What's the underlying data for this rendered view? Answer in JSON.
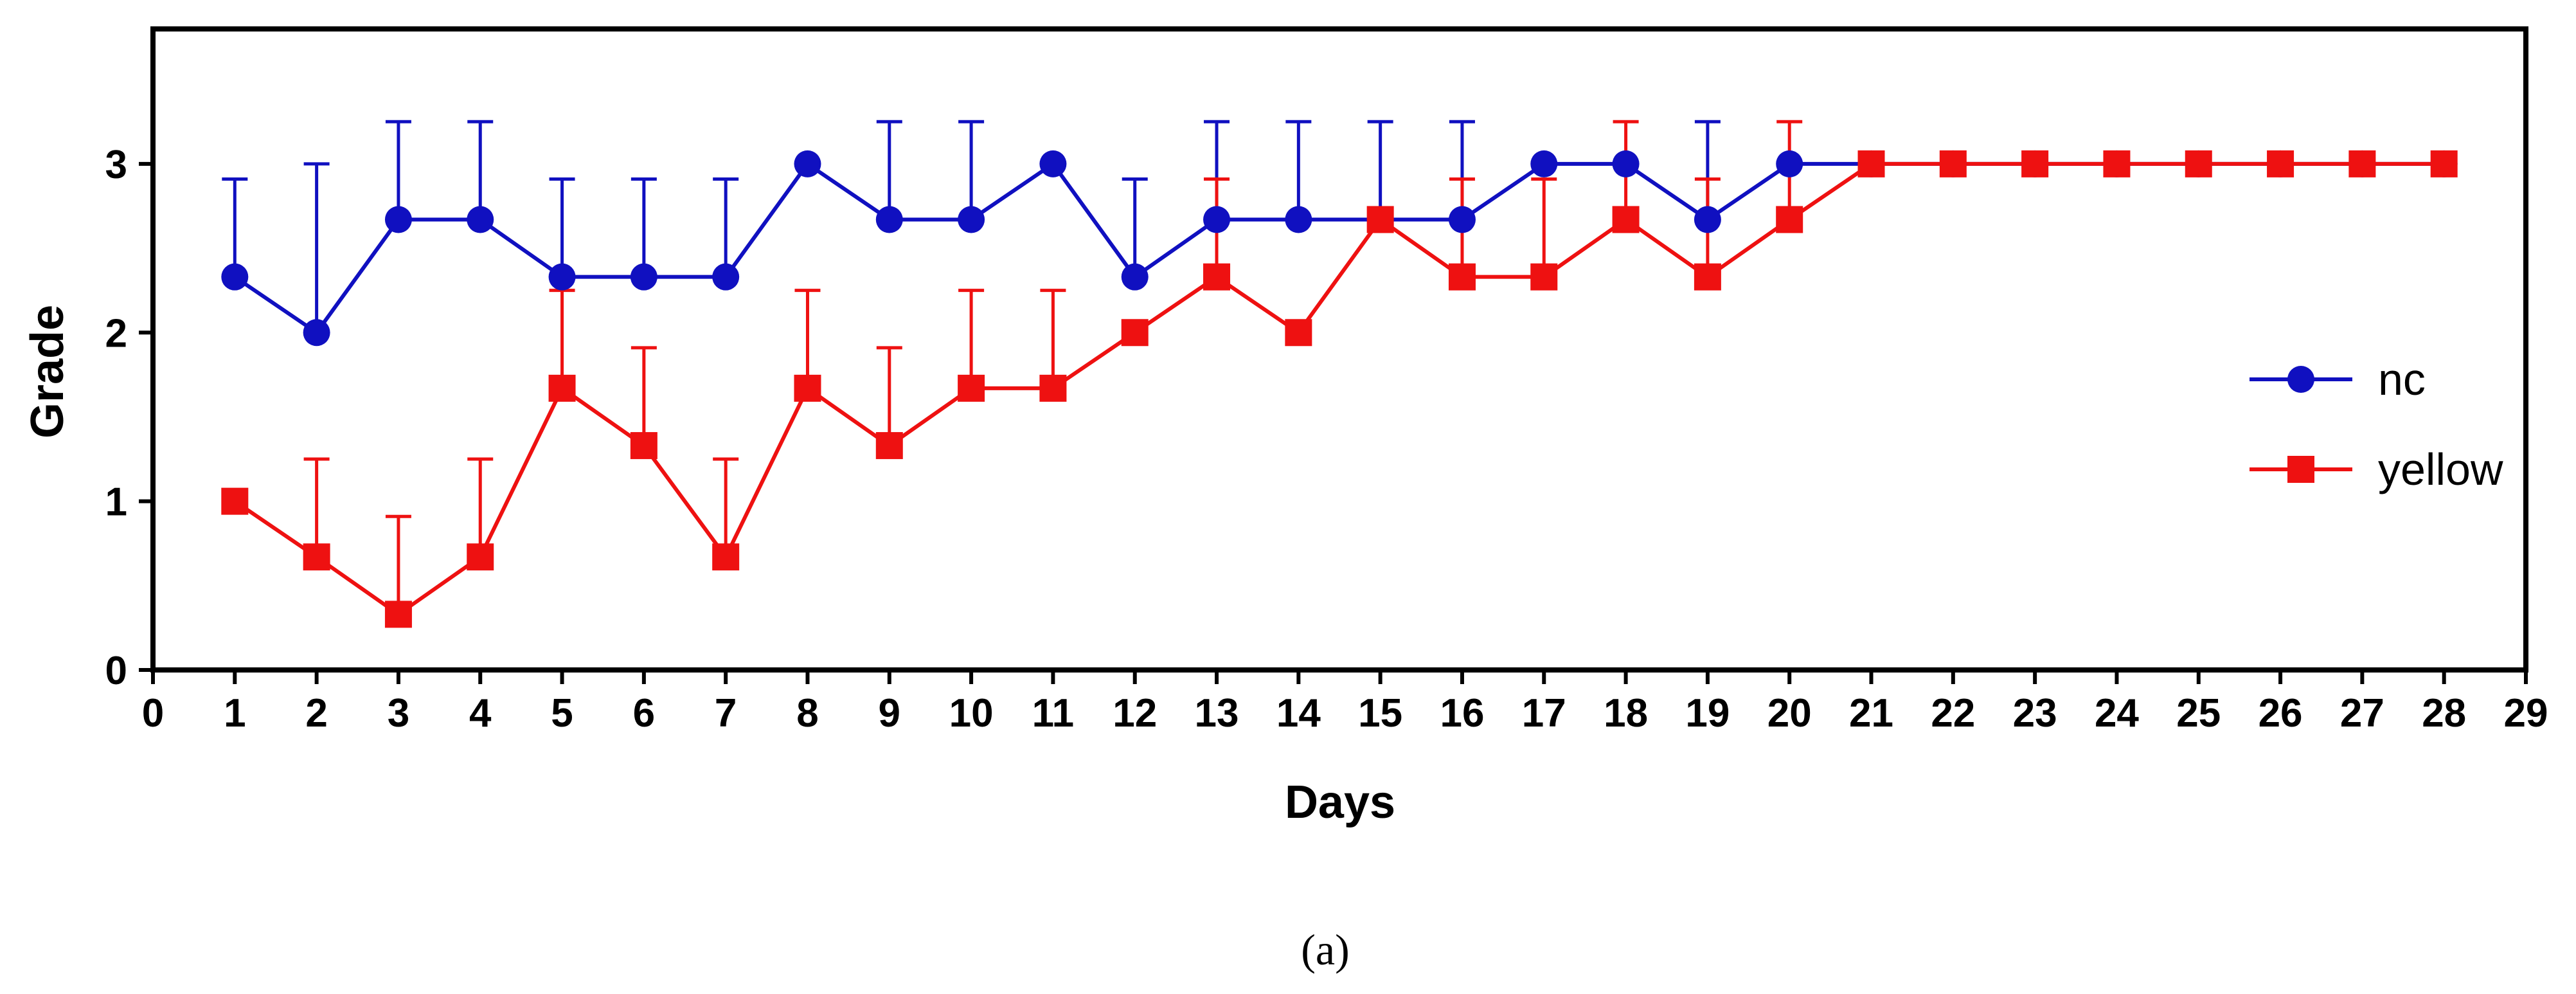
{
  "chart_data": {
    "type": "line",
    "title": "",
    "xlabel": "Days",
    "ylabel": "Grade",
    "xlim": [
      0,
      29
    ],
    "ylim": [
      0,
      3.8
    ],
    "xticks": [
      0,
      1,
      2,
      3,
      4,
      5,
      6,
      7,
      8,
      9,
      10,
      11,
      12,
      13,
      14,
      15,
      16,
      17,
      18,
      19,
      20,
      21,
      22,
      23,
      24,
      25,
      26,
      27,
      28,
      29
    ],
    "yticks": [
      0,
      1,
      2,
      3
    ],
    "x": [
      1,
      2,
      3,
      4,
      5,
      6,
      7,
      8,
      9,
      10,
      11,
      12,
      13,
      14,
      15,
      16,
      17,
      18,
      19,
      20,
      21,
      22,
      23,
      24,
      25,
      26,
      27,
      28
    ],
    "legend_position": "center-right",
    "series": [
      {
        "name": "nc",
        "color": "#1010c0",
        "marker": "circle",
        "values": [
          2.33,
          2.0,
          2.67,
          2.67,
          2.33,
          2.33,
          2.33,
          3.0,
          2.67,
          2.67,
          3.0,
          2.33,
          2.67,
          2.67,
          2.67,
          2.67,
          3.0,
          3.0,
          2.67,
          3.0,
          3.0,
          3.0,
          3.0,
          3.0,
          3.0,
          3.0,
          3.0,
          3.0
        ],
        "error_upper": [
          0.58,
          1.0,
          0.58,
          0.58,
          0.58,
          0.58,
          0.58,
          0,
          0.58,
          0.58,
          0,
          0.58,
          0.58,
          0.58,
          0.58,
          0.58,
          0,
          0,
          0.58,
          0,
          0,
          0,
          0,
          0,
          0,
          0,
          0,
          0
        ]
      },
      {
        "name": "yellow",
        "color": "#ee1111",
        "marker": "square",
        "values": [
          1.0,
          0.67,
          0.33,
          0.67,
          1.67,
          1.33,
          0.67,
          1.67,
          1.33,
          1.67,
          1.67,
          2.0,
          2.33,
          2.0,
          2.67,
          2.33,
          2.33,
          2.67,
          2.33,
          2.67,
          3.0,
          3.0,
          3.0,
          3.0,
          3.0,
          3.0,
          3.0,
          3.0
        ],
        "error_upper": [
          0,
          0.58,
          0.58,
          0.58,
          0.58,
          0.58,
          0.58,
          0.58,
          0.58,
          0.58,
          0.58,
          0,
          0.58,
          0,
          0,
          0.58,
          0.58,
          0.58,
          0.58,
          0.58,
          0,
          0,
          0,
          0,
          0,
          0,
          0,
          0
        ]
      }
    ],
    "caption": "(a)"
  }
}
